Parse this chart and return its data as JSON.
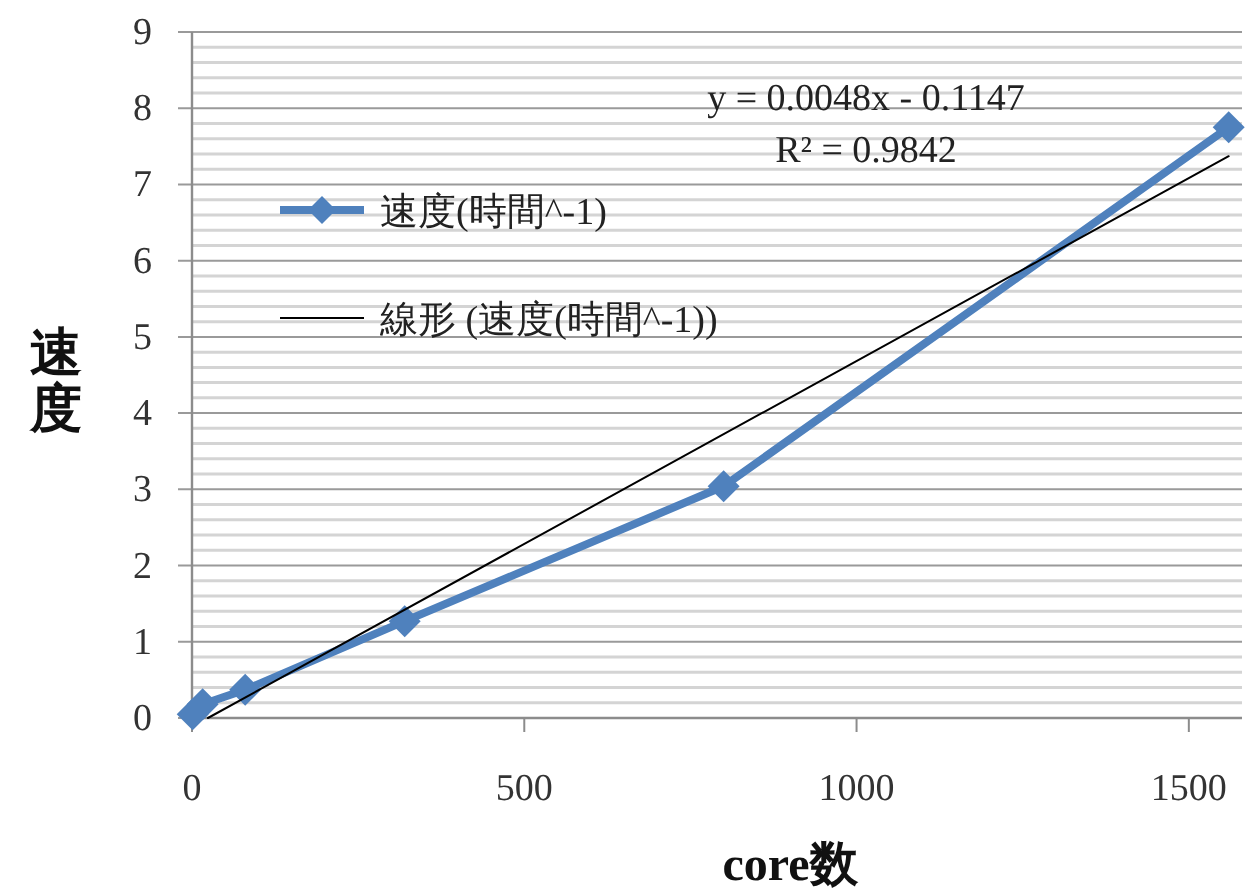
{
  "chart_data": {
    "type": "line",
    "xlabel": "core数",
    "ylabel": "速度",
    "xlim": [
      0,
      1580
    ],
    "xticks": [
      0,
      500,
      1000,
      1500
    ],
    "ylim": [
      0,
      9
    ],
    "yticks": [
      0,
      1,
      2,
      3,
      4,
      5,
      6,
      7,
      8,
      9
    ],
    "grid": "y",
    "legend": "top left",
    "series": [
      {
        "name": "速度(時間^-1)",
        "color": "#4f81bd",
        "marker": "diamond",
        "line_style": "solid",
        "x": [
          1,
          16,
          80,
          320,
          800,
          1560
        ],
        "values": [
          0.05,
          0.18,
          0.37,
          1.27,
          3.04,
          7.75
        ]
      },
      {
        "name": "線形 (速度(時間^-1))",
        "color": "#000000",
        "marker": "none",
        "line_style": "solid",
        "x": [
          24,
          1560
        ],
        "values": [
          0,
          7.37
        ]
      }
    ],
    "annotations": [
      "y = 0.0048x - 0.1147",
      "R² = 0.9842"
    ]
  }
}
